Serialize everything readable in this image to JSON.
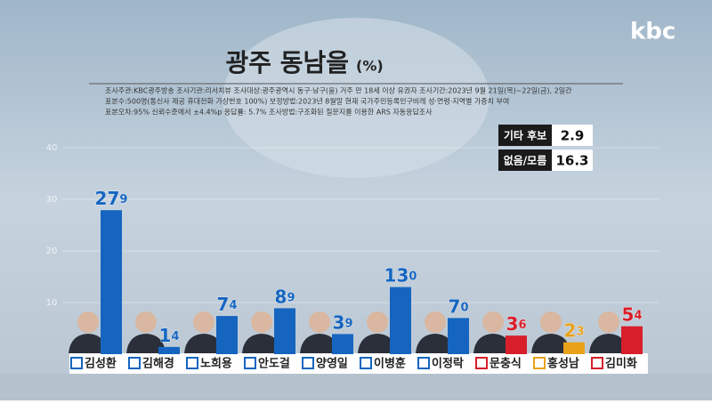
{
  "chart_data": {
    "type": "bar",
    "title": "광주 동남을",
    "unit": "(%)",
    "logo": "kbc",
    "notes": [
      "조사주관:KBC광주방송   조사기관:리서치뷰   조사대상:광주광역시 동구·남구(을) 거주 만 18세 이상 유권자   조사기간:2023년 9월 21일(목)~22일(금), 2일간",
      "표본수:500명(통신사 제공 휴대전화 가상번호 100%)   보정방법:2023년 8월말 현재 국가주민등록인구비례 성·연령·지역별 가중치 부여",
      "표본오차:95% 신뢰수준에서 ±4.4%p   응답률: 5.7%   조사방법:구조화된 질문지를 이용한 ARS 자동응답조사"
    ],
    "others": [
      {
        "label": "기타 후보",
        "value": 2.9
      },
      {
        "label": "없음/모름",
        "value": 16.3
      }
    ],
    "categories": [
      "김성환",
      "김해경",
      "노희용",
      "안도걸",
      "양영일",
      "이병훈",
      "이정락",
      "문충식",
      "홍성남",
      "김미화"
    ],
    "values": [
      27.9,
      1.4,
      7.4,
      8.9,
      3.9,
      13.0,
      7.0,
      3.6,
      2.3,
      5.4
    ],
    "value_labels": [
      "27.9",
      "1.4",
      "7.4",
      "8.9",
      "3.9",
      "13.0",
      "7.0",
      "3.6",
      "2.3",
      "5.4"
    ],
    "colors": [
      "#1565c0",
      "#1565c0",
      "#1565c0",
      "#1565c0",
      "#1565c0",
      "#1565c0",
      "#1565c0",
      "#d81e2a",
      "#e8a21a",
      "#d81e2a"
    ],
    "ylim": [
      0,
      40
    ],
    "yticks": [
      10,
      20,
      30,
      40
    ],
    "grid": true
  }
}
